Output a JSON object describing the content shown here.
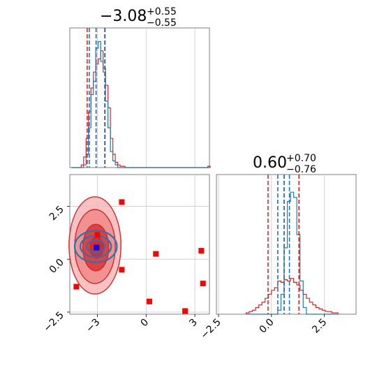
{
  "colors": {
    "red": "#d62728",
    "blue": "#1f77b4",
    "red_fill": "#f08080",
    "red_fill_dark": "#e02020",
    "scatter_red": "#ff0000",
    "scatter_blue": "#0000ff",
    "grid": "#c8c8c8",
    "axis": "#7f7f7f"
  },
  "chart_data": {
    "type": "corner",
    "parameters": [
      "param0",
      "param1"
    ],
    "grid": true,
    "titles": {
      "p0": {
        "value": "−3.08",
        "upper": "+0.55",
        "lower": "−0.55"
      },
      "p1": {
        "value": "0.60",
        "upper": "+0.70",
        "lower": "−0.76"
      }
    },
    "xlim_p0": [
      -4.7,
      3.9
    ],
    "ylim_p1": [
      -2.6,
      4.0
    ],
    "xlim_p1_hist": [
      -2.6,
      4.0
    ],
    "p0_ticks": [
      "−3",
      "0",
      "3"
    ],
    "p0_tick_values": [
      -3,
      0,
      3
    ],
    "p1_ticks": [
      "−2.5",
      "0.0",
      "2.5"
    ],
    "p1_tick_values": [
      -2.5,
      0.0,
      2.5
    ],
    "p0_histogram": {
      "bins_start": -4.6,
      "bin_width": 0.15,
      "red_counts": [
        0,
        0,
        0,
        0,
        0.02,
        0.08,
        0.22,
        0.42,
        0.6,
        0.72,
        0.78,
        0.82,
        0.88,
        0.75,
        0.62,
        0.45,
        0.22,
        0.1,
        0.04,
        0.02,
        0.01,
        0.01,
        0,
        0,
        0,
        0,
        0,
        0,
        0,
        0,
        0,
        0,
        0,
        0,
        0,
        0,
        0,
        0,
        0,
        0,
        0,
        0,
        0,
        0,
        0,
        0,
        0,
        0,
        0,
        0,
        0,
        0,
        0,
        0,
        0,
        0,
        0.01
      ],
      "blue_counts": [
        0,
        0,
        0,
        0,
        0,
        0.02,
        0.1,
        0.3,
        0.55,
        0.65,
        0.9,
        0.95,
        0.8,
        0.72,
        0.5,
        0.3,
        0.12,
        0.05,
        0.02,
        0,
        0,
        0,
        0,
        0,
        0,
        0,
        0,
        0,
        0,
        0,
        0,
        0,
        0,
        0,
        0,
        0,
        0,
        0,
        0,
        0,
        0,
        0,
        0,
        0,
        0,
        0,
        0,
        0,
        0,
        0,
        0,
        0,
        0,
        0,
        0,
        0,
        0
      ],
      "red_quantiles": [
        -3.63,
        -3.08,
        -2.53
      ],
      "blue_quantiles": [
        -3.5,
        -3.08,
        -2.55
      ]
    },
    "p1_histogram": {
      "bins_start": -1.2,
      "bin_width": 0.15,
      "red_counts": [
        0.01,
        0.02,
        0.03,
        0.05,
        0.07,
        0.09,
        0.12,
        0.15,
        0.18,
        0.2,
        0.25,
        0.24,
        0.26,
        0.25,
        0.27,
        0.24,
        0.22,
        0.18,
        0.15,
        0.12,
        0.09,
        0.07,
        0.05,
        0.04,
        0.03,
        0.02,
        0.02,
        0.01,
        0.01
      ],
      "blue_counts": [
        0,
        0,
        0,
        0,
        0,
        0,
        0,
        0,
        0,
        0,
        0.03,
        0.15,
        0.5,
        0.85,
        0.92,
        0.88,
        0.6,
        0.25,
        0.05,
        0,
        0,
        0,
        0,
        0,
        0,
        0,
        0,
        0,
        0
      ],
      "red_quantiles": [
        -0.16,
        0.6,
        1.3
      ],
      "blue_quantiles": [
        0.3,
        0.6,
        0.85
      ]
    },
    "outliers_red": [
      [
        -1.5,
        2.7
      ],
      [
        -1.5,
        -0.5
      ],
      [
        0.6,
        0.25
      ],
      [
        3.4,
        0.4
      ],
      [
        0.2,
        -2.0
      ],
      [
        2.4,
        -2.45
      ],
      [
        3.5,
        -1.15
      ],
      [
        -4.3,
        -1.3
      ],
      [
        -3.0,
        1.15
      ]
    ],
    "blue_marker": [
      -3.05,
      0.55
    ],
    "red_marker": [
      -2.95,
      0.55
    ],
    "red_contours": [
      {
        "cx": -3.15,
        "cy": 0.65,
        "rx": 1.6,
        "ry": 2.3
      },
      {
        "cx": -3.15,
        "cy": 0.6,
        "rx": 1.25,
        "ry": 1.75
      },
      {
        "cx": -3.1,
        "cy": 0.55,
        "rx": 0.8,
        "ry": 1.1
      },
      {
        "cx": -3.05,
        "cy": 0.55,
        "rx": 0.4,
        "ry": 0.5
      }
    ],
    "blue_contours": [
      {
        "cx": -3.1,
        "cy": 0.6,
        "rx": 1.3,
        "ry": 0.75
      },
      {
        "cx": -3.1,
        "cy": 0.6,
        "rx": 0.95,
        "ry": 0.5
      },
      {
        "cx": -3.1,
        "cy": 0.6,
        "rx": 0.55,
        "ry": 0.3
      }
    ]
  }
}
